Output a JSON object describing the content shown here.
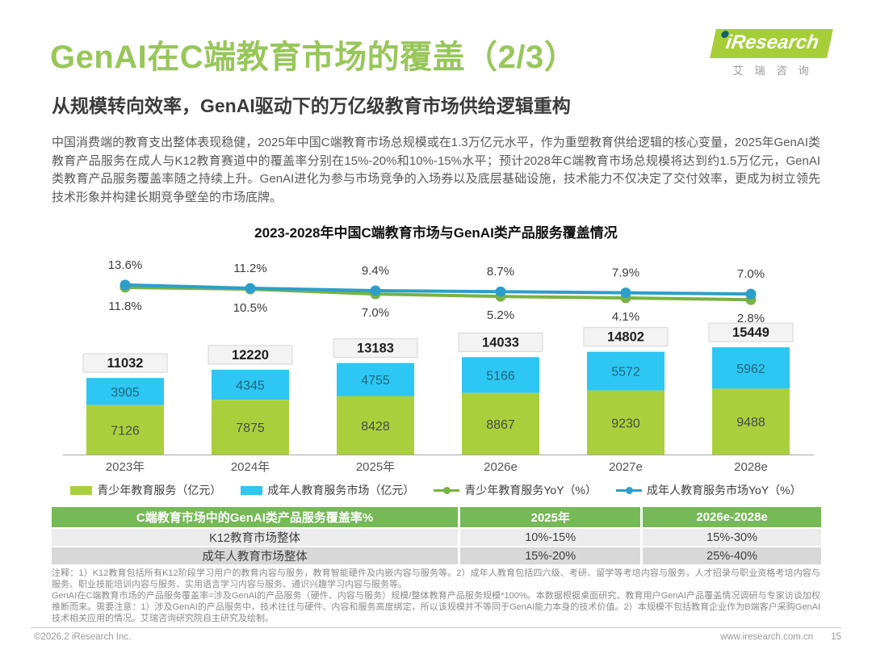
{
  "page": {
    "title": "GenAI在C端教育市场的覆盖（2/3）",
    "subtitle": "从规模转向效率，GenAI驱动下的万亿级教育市场供给逻辑重构",
    "body": "中国消费端的教育支出整体表现稳健，2025年中国C端教育市场总规模或在1.3万亿元水平，作为重塑教育供给逻辑的核心变量，2025年GenAI类教育产品服务在成人与K12教育赛道中的覆盖率分别在15%-20%和10%-15%水平；预计2028年C端教育市场总规模将达到约1.5万亿元，GenAI类教育产品服务覆盖率随之持续上升。GenAI进化为参与市场竞争的入场券以及底层基础设施，技术能力不仅决定了交付效率，更成为树立领先技术形象并构建长期竞争壁垒的市场底牌。"
  },
  "logo": {
    "brand": "iResearch",
    "cn": "艾瑞咨询"
  },
  "chart_data": {
    "type": "bar",
    "subtype": "stacked-bar-with-lines",
    "title": "2023-2028年中国C端教育市场与GenAI类产品服务覆盖情况",
    "categories": [
      "2023年",
      "2024年",
      "2025年",
      "2026e",
      "2027e",
      "2028e"
    ],
    "bar_series": [
      {
        "name": "青少年教育服务（亿元）",
        "color": "#A9D03C",
        "values": [
          7126,
          7875,
          8428,
          8867,
          9230,
          9488
        ]
      },
      {
        "name": "成年人教育服务市场（亿元）",
        "color": "#2EC6F2",
        "values": [
          3905,
          4345,
          4755,
          5166,
          5572,
          5962
        ]
      }
    ],
    "totals": [
      11032,
      12220,
      13183,
      14033,
      14802,
      15449
    ],
    "line_series": [
      {
        "name": "青少年教育服务YoY（%）",
        "color": "#78B244",
        "values": [
          11.8,
          10.5,
          7.0,
          5.2,
          4.1,
          2.8
        ],
        "label_position": "below"
      },
      {
        "name": "成年人教育服务市场YoY（%）",
        "color": "#2D9EC9",
        "values": [
          13.6,
          11.2,
          9.4,
          8.7,
          7.9,
          7.0
        ],
        "label_position": "above"
      }
    ],
    "ylabel": "",
    "xlabel": "",
    "grid": false,
    "legend_position": "bottom"
  },
  "table": {
    "header": [
      "C端教育市场中的GenAI类产品服务覆盖率%",
      "2025年",
      "2026e-2028e"
    ],
    "rows": [
      [
        "K12教育市场整体",
        "10%-15%",
        "15%-30%"
      ],
      [
        "成年人教育市场整体",
        "15%-20%",
        "25%-40%"
      ]
    ]
  },
  "notes": [
    "注释：1）K12教育包括所有K12阶段学习用户的教育内容与服务，教育智能硬件及内嵌内容与服务等。2）成年人教育包括四六级、考研、留学等考培内容与服务，人才招录与职业资格考培内容与服务、职业技能培训内容与服务、实用语言学习内容与服务、通识兴趣学习内容与服务等。",
    "GenAI在C端教育市场的产品服务覆盖率=涉及GenAI的产品服务（硬件、内容与服务）规模/整体教育产品服务规模*100%。本数据根据桌面研究、教育用户GenAI产品覆盖情况调研与专家访谈加权推断而来。需要注意：1）涉及GenAI的产品服务中，技术往往与硬件、内容和服务高度绑定，所以该规模并不等同于GenAI能力本身的技术价值。2）本规模不包括教育企业作为B端客户采购GenAI技术相关应用的情况。艾瑞咨询研究院自主研究及绘制。"
  ],
  "footer": {
    "left": "©2026.2 iResearch Inc.",
    "right": "www.iresearch.com.cn",
    "page": "15"
  },
  "colors": {
    "title_green": "#98C65A",
    "logo_green": "#A5CE39",
    "bar_green": "#A9D03C",
    "bar_blue": "#2EC6F2",
    "line_green": "#78B244",
    "line_blue": "#2D9EC9",
    "table_header_green": "#76B957",
    "row_light": "#ECECEC",
    "row_dark": "#D8D8D8"
  }
}
